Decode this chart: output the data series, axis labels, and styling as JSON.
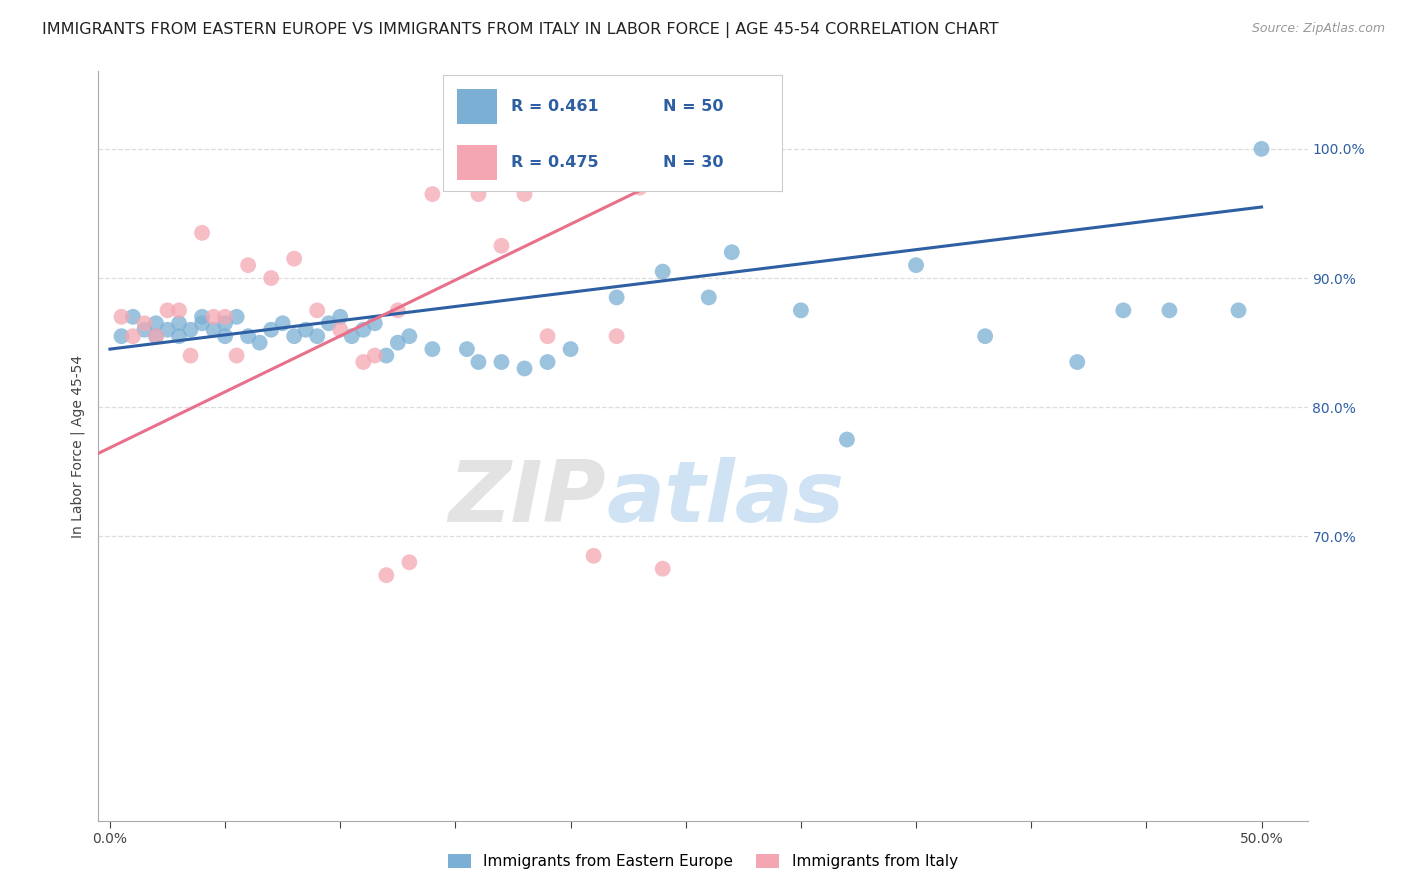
{
  "title": "IMMIGRANTS FROM EASTERN EUROPE VS IMMIGRANTS FROM ITALY IN LABOR FORCE | AGE 45-54 CORRELATION CHART",
  "source": "Source: ZipAtlas.com",
  "ylabel": "In Labor Force | Age 45-54",
  "y_tick_labels": [
    "100.0%",
    "90.0%",
    "80.0%",
    "70.0%"
  ],
  "y_tick_values": [
    1.0,
    0.9,
    0.8,
    0.7
  ],
  "x_tick_values": [
    0.0,
    0.05,
    0.1,
    0.15,
    0.2,
    0.25,
    0.3,
    0.35,
    0.4,
    0.45,
    0.5
  ],
  "xlim": [
    -0.005,
    0.52
  ],
  "ylim": [
    0.48,
    1.06
  ],
  "legend_R_blue": "0.461",
  "legend_N_blue": "50",
  "legend_R_pink": "0.475",
  "legend_N_pink": "30",
  "blue_color": "#7BAFD4",
  "pink_color": "#F4A7B2",
  "line_blue": "#2E5FA3",
  "line_pink": "#E8708A",
  "watermark_zip": "ZIP",
  "watermark_atlas": "atlas",
  "blue_scatter_x": [
    0.005,
    0.01,
    0.015,
    0.02,
    0.02,
    0.025,
    0.03,
    0.03,
    0.035,
    0.04,
    0.04,
    0.045,
    0.05,
    0.05,
    0.055,
    0.06,
    0.065,
    0.07,
    0.075,
    0.08,
    0.085,
    0.09,
    0.095,
    0.1,
    0.105,
    0.11,
    0.115,
    0.12,
    0.125,
    0.13,
    0.14,
    0.155,
    0.16,
    0.17,
    0.18,
    0.19,
    0.2,
    0.22,
    0.24,
    0.26,
    0.27,
    0.3,
    0.32,
    0.35,
    0.38,
    0.42,
    0.44,
    0.46,
    0.49,
    0.5
  ],
  "blue_scatter_y": [
    0.855,
    0.87,
    0.86,
    0.865,
    0.855,
    0.86,
    0.865,
    0.855,
    0.86,
    0.865,
    0.87,
    0.86,
    0.855,
    0.865,
    0.87,
    0.855,
    0.85,
    0.86,
    0.865,
    0.855,
    0.86,
    0.855,
    0.865,
    0.87,
    0.855,
    0.86,
    0.865,
    0.84,
    0.85,
    0.855,
    0.845,
    0.845,
    0.835,
    0.835,
    0.83,
    0.835,
    0.845,
    0.885,
    0.905,
    0.885,
    0.92,
    0.875,
    0.775,
    0.91,
    0.855,
    0.835,
    0.875,
    0.875,
    0.875,
    1.0
  ],
  "pink_scatter_x": [
    0.005,
    0.01,
    0.015,
    0.02,
    0.025,
    0.03,
    0.035,
    0.04,
    0.045,
    0.05,
    0.055,
    0.06,
    0.07,
    0.08,
    0.09,
    0.1,
    0.11,
    0.115,
    0.125,
    0.14,
    0.16,
    0.17,
    0.18,
    0.19,
    0.21,
    0.22,
    0.23,
    0.24,
    0.12,
    0.13
  ],
  "pink_scatter_y": [
    0.87,
    0.855,
    0.865,
    0.855,
    0.875,
    0.875,
    0.84,
    0.935,
    0.87,
    0.87,
    0.84,
    0.91,
    0.9,
    0.915,
    0.875,
    0.86,
    0.835,
    0.84,
    0.875,
    0.965,
    0.965,
    0.925,
    0.965,
    0.855,
    0.685,
    0.855,
    0.97,
    0.675,
    0.67,
    0.68
  ],
  "blue_line_x": [
    0.0,
    0.5
  ],
  "blue_line_y": [
    0.845,
    0.955
  ],
  "pink_line_x": [
    -0.01,
    0.25
  ],
  "pink_line_y": [
    0.76,
    0.985
  ],
  "background_color": "#FFFFFF",
  "grid_color": "#DDDDDD",
  "title_fontsize": 11.5,
  "axis_label_fontsize": 10,
  "tick_fontsize": 10,
  "source_fontsize": 9
}
